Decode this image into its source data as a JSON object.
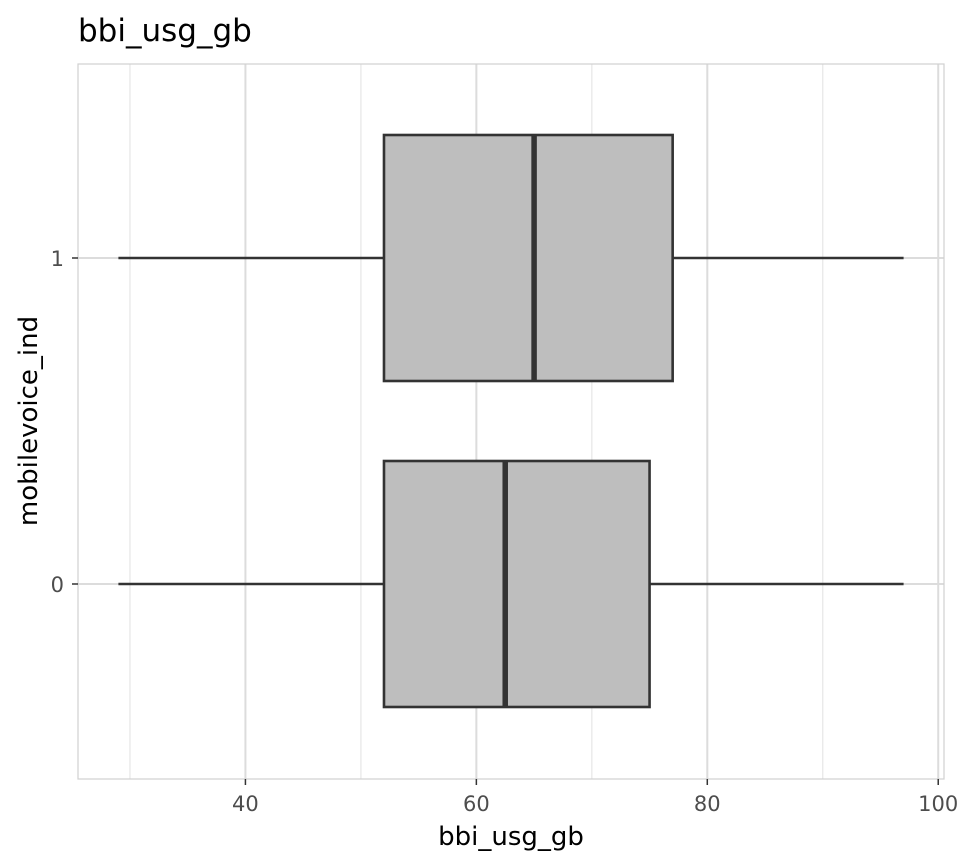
{
  "chart_data": {
    "type": "boxplot",
    "orientation": "horizontal",
    "title": "bbi_usg_gb",
    "xlabel": "bbi_usg_gb",
    "ylabel": "mobilevoice_ind",
    "xlim": [
      25.5,
      100.5
    ],
    "x_ticks": [
      40,
      60,
      80,
      100
    ],
    "x_minor_ticks": [
      30,
      50,
      70,
      90
    ],
    "categories": [
      "0",
      "1"
    ],
    "boxes": [
      {
        "category": "0",
        "whisker_low": 29,
        "q1": 52,
        "median": 62.5,
        "q3": 75,
        "whisker_high": 97
      },
      {
        "category": "1",
        "whisker_low": 29,
        "q1": 52,
        "median": 65,
        "q3": 77,
        "whisker_high": 97
      }
    ],
    "box_fill": "#bebebe",
    "box_stroke": "#333333",
    "grid_color": "#dcdcdc",
    "panel_border": "#d0d0d0",
    "grid": true,
    "legend": "none"
  }
}
